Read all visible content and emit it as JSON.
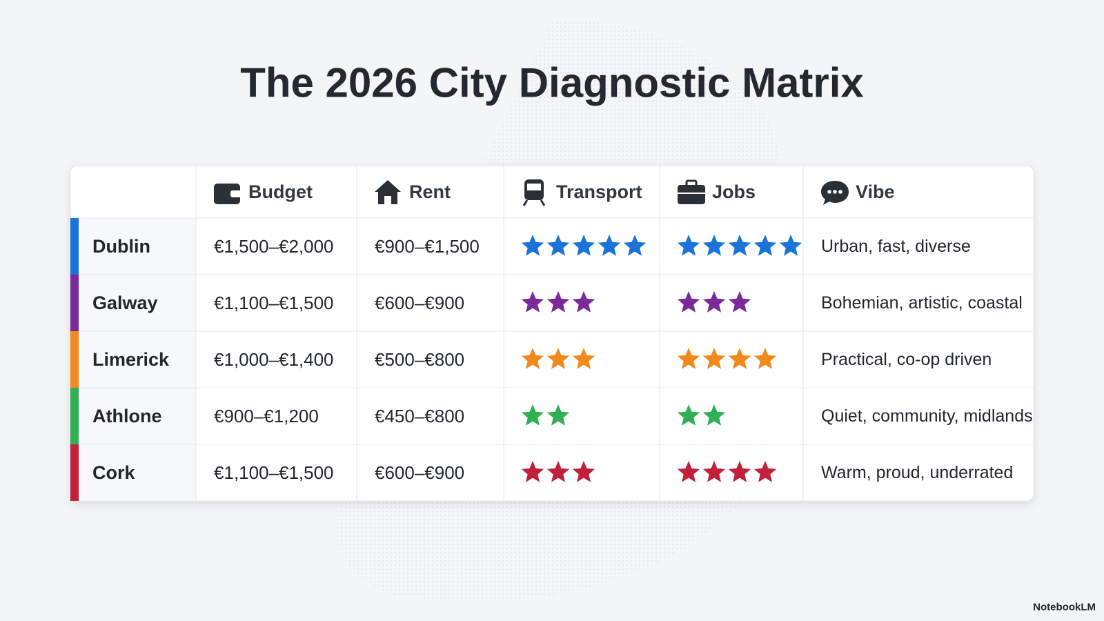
{
  "title": "The 2026 City Diagnostic Matrix",
  "table": {
    "headers": [
      "Budget",
      "Rent",
      "Transport",
      "Jobs",
      "Vibe"
    ],
    "star_color_by_row": true,
    "rows": [
      {
        "city": "Dublin",
        "color": "#1a73d9",
        "budget": "€1,500–€2,000",
        "rent": "€900–€1,500",
        "transport": 5,
        "jobs": 5,
        "vibe": "Urban, fast, diverse"
      },
      {
        "city": "Galway",
        "color": "#7b2a9a",
        "budget": "€1,100–€1,500",
        "rent": "€600–€900",
        "transport": 3,
        "jobs": 3,
        "vibe": "Bohemian, artistic, coastal"
      },
      {
        "city": "Limerick",
        "color": "#f08a1c",
        "budget": "€1,000–€1,400",
        "rent": "€500–€800",
        "transport": 3,
        "jobs": 4,
        "vibe": "Practical, co-op driven"
      },
      {
        "city": "Athlone",
        "color": "#2fb055",
        "budget": "€900–€1,200",
        "rent": "€450–€800",
        "transport": 2,
        "jobs": 2,
        "vibe": "Quiet, community, midlands"
      },
      {
        "city": "Cork",
        "color": "#c0203a",
        "budget": "€1,100–€1,500",
        "rent": "€600–€900",
        "transport": 3,
        "jobs": 4,
        "vibe": "Warm, proud, underrated"
      }
    ]
  },
  "footer": "NotebookLM"
}
